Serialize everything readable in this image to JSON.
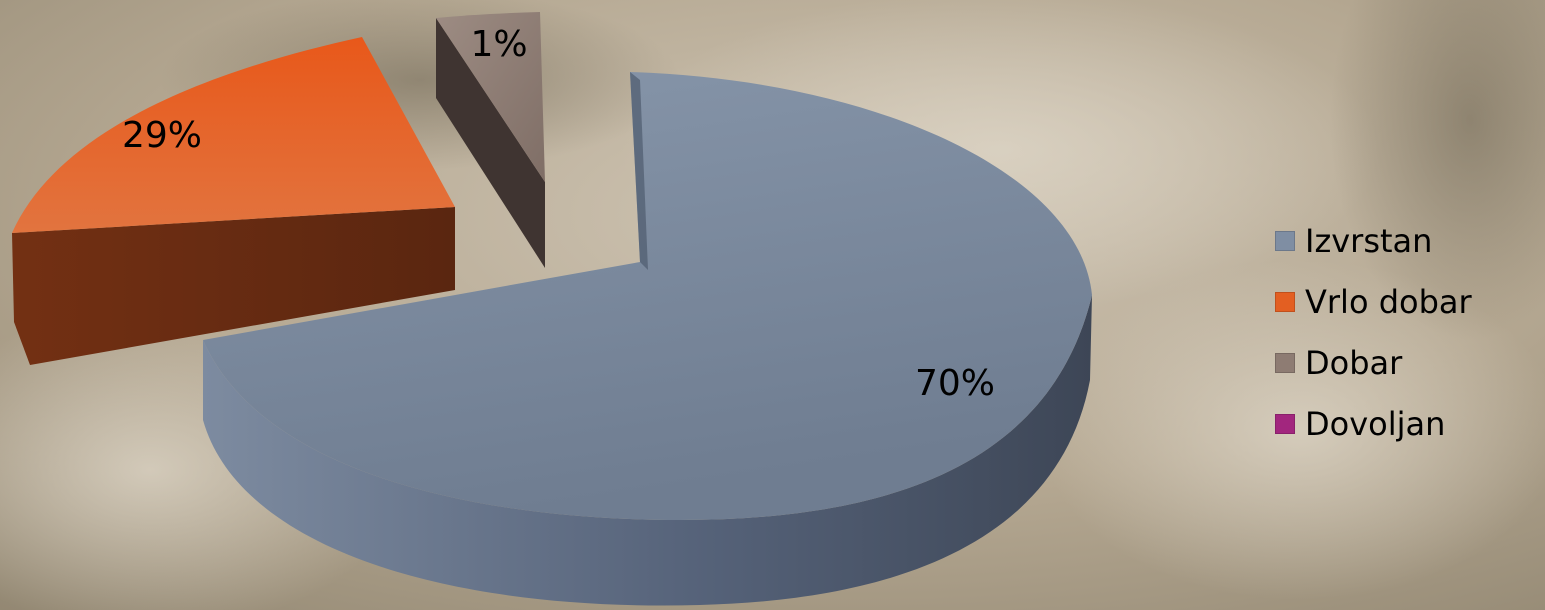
{
  "chart_data": {
    "type": "pie",
    "style": "3d-exploded",
    "title": "",
    "legend_position": "right",
    "slices": [
      {
        "label": "Izvrstan",
        "value": 70,
        "data_label": "70%",
        "color": "#7f8ea3"
      },
      {
        "label": "Vrlo dobar",
        "value": 29,
        "data_label": "29%",
        "color": "#e35f22"
      },
      {
        "label": "Dobar",
        "value": 1,
        "data_label": "1%",
        "color": "#8e7c73"
      },
      {
        "label": "Dovoljan",
        "value": 0,
        "data_label": "",
        "color": "#a2267e"
      }
    ]
  },
  "background": {
    "description_color": "#b9ab95"
  }
}
